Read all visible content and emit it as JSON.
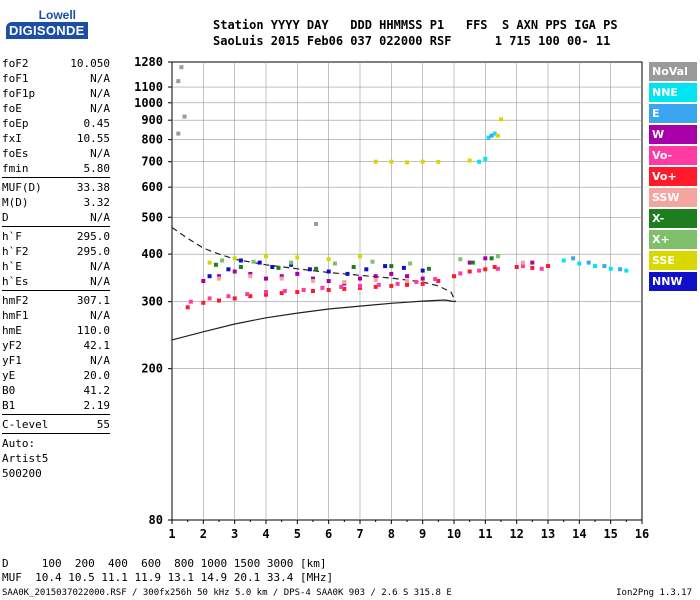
{
  "logo": {
    "line1": "Lowell",
    "line2": "DIGISONDE"
  },
  "header": {
    "line1": "Station YYYY DAY   DDD HHMMSS P1   FFS  S AXN PPS IGA PS",
    "line2": "SaoLuis 2015 Feb06 037 022000 RSF      1 715 100 00- 11"
  },
  "params": {
    "group1": [
      {
        "name": "foF2",
        "value": "10.050"
      },
      {
        "name": "foF1",
        "value": "N/A"
      },
      {
        "name": "foF1p",
        "value": "N/A"
      },
      {
        "name": "foE",
        "value": "N/A"
      },
      {
        "name": "foEp",
        "value": "0.45"
      },
      {
        "name": "fxI",
        "value": "10.55"
      },
      {
        "name": "foEs",
        "value": "N/A"
      },
      {
        "name": "fmin",
        "value": "5.80"
      }
    ],
    "group2": [
      {
        "name": "MUF(D)",
        "value": "33.38"
      },
      {
        "name": "M(D)",
        "value": "3.32"
      },
      {
        "name": "D",
        "value": "N/A"
      }
    ],
    "group3": [
      {
        "name": "h`F",
        "value": "295.0"
      },
      {
        "name": "h`F2",
        "value": "295.0"
      },
      {
        "name": "h`E",
        "value": "N/A"
      },
      {
        "name": "h`Es",
        "value": "N/A"
      }
    ],
    "group4": [
      {
        "name": "hmF2",
        "value": "307.1"
      },
      {
        "name": "hmF1",
        "value": "N/A"
      },
      {
        "name": "hmE",
        "value": "110.0"
      },
      {
        "name": "yF2",
        "value": "42.1"
      },
      {
        "name": "yF1",
        "value": "N/A"
      },
      {
        "name": "yE",
        "value": "20.0"
      },
      {
        "name": "B0",
        "value": "41.2"
      },
      {
        "name": "B1",
        "value": "2.19"
      }
    ],
    "clevel": {
      "name": "C-level",
      "value": "55"
    },
    "auto": [
      "Auto:",
      "Artist5",
      "500200"
    ]
  },
  "legend": [
    {
      "label": "NoVal",
      "color": "#9a9a9a"
    },
    {
      "label": "NNE",
      "color": "#00e5f0"
    },
    {
      "label": "E",
      "color": "#3aa6f2"
    },
    {
      "label": "W",
      "color": "#a800a8"
    },
    {
      "label": "Vo-",
      "color": "#ff3aa2"
    },
    {
      "label": "Vo+",
      "color": "#ff1a2a"
    },
    {
      "label": "SSW",
      "color": "#f4a5a0"
    },
    {
      "label": "X-",
      "color": "#1e7d1e"
    },
    {
      "label": "X+",
      "color": "#7fbf6a"
    },
    {
      "label": "SSE",
      "color": "#d8d800"
    },
    {
      "label": "NNW",
      "color": "#1010c8"
    }
  ],
  "footer": {
    "d_row": "D     100  200  400  600  800 1000 1500 3000 [km]",
    "muf_row": "MUF  10.4 10.5 11.1 11.9 13.1 14.9 20.1 33.4 [MHz]",
    "source": "SAA0K_2015037022000.RSF / 300fx256h 50 kHz 5.0 km / DPS-4 SAA0K 903 / 2.6 S 315.8 E",
    "version": "Ion2Png 1.3.17"
  },
  "chart_data": {
    "type": "scatter",
    "title": "",
    "xlabel": "",
    "ylabel": "",
    "x_scale": "linear",
    "y_scale": "log",
    "xlim": [
      1,
      16
    ],
    "ylim": [
      80,
      1280
    ],
    "x_ticks": [
      "1",
      "2",
      "3",
      "4",
      "5",
      "6",
      "7",
      "8",
      "9",
      "10",
      "11",
      "12",
      "13",
      "14",
      "15",
      "16"
    ],
    "y_ticks": [
      "80",
      "200",
      "300",
      "400",
      "500",
      "600",
      "700",
      "800",
      "900",
      "1000",
      "1100",
      "1280"
    ],
    "grid": true,
    "legend_position": "right",
    "series": [
      {
        "name": "Vo+",
        "color": "#ff1a2a",
        "points": [
          [
            1.5,
            290
          ],
          [
            2.0,
            298
          ],
          [
            2.5,
            302
          ],
          [
            3.0,
            306
          ],
          [
            3.5,
            310
          ],
          [
            4.0,
            313
          ],
          [
            4.5,
            316
          ],
          [
            5.0,
            318
          ],
          [
            5.5,
            320
          ],
          [
            6.0,
            322
          ],
          [
            6.5,
            324
          ],
          [
            7.0,
            326
          ],
          [
            7.5,
            328
          ],
          [
            8.0,
            330
          ],
          [
            8.5,
            332
          ],
          [
            9.0,
            334
          ],
          [
            9.5,
            340
          ],
          [
            10.0,
            350
          ],
          [
            10.5,
            360
          ],
          [
            11.0,
            365
          ],
          [
            11.3,
            370
          ],
          [
            12.0,
            370
          ],
          [
            12.5,
            368
          ],
          [
            13.0,
            372
          ]
        ]
      },
      {
        "name": "Vo-",
        "color": "#ff3aa2",
        "points": [
          [
            1.6,
            300
          ],
          [
            2.2,
            306
          ],
          [
            2.8,
            310
          ],
          [
            3.4,
            314
          ],
          [
            4.0,
            318
          ],
          [
            4.6,
            320
          ],
          [
            5.2,
            322
          ],
          [
            5.8,
            326
          ],
          [
            6.4,
            328
          ],
          [
            7.0,
            330
          ],
          [
            7.6,
            332
          ],
          [
            8.2,
            334
          ],
          [
            8.8,
            338
          ],
          [
            9.4,
            344
          ],
          [
            10.2,
            356
          ],
          [
            10.8,
            362
          ],
          [
            11.4,
            366
          ],
          [
            12.2,
            372
          ],
          [
            12.8,
            366
          ]
        ]
      },
      {
        "name": "W",
        "color": "#a800a8",
        "points": [
          [
            2.0,
            340
          ],
          [
            2.5,
            350
          ],
          [
            3.0,
            360
          ],
          [
            3.5,
            355
          ],
          [
            4.0,
            345
          ],
          [
            4.5,
            350
          ],
          [
            5.0,
            355
          ],
          [
            5.5,
            345
          ],
          [
            6.0,
            340
          ],
          [
            6.5,
            335
          ],
          [
            7.0,
            345
          ],
          [
            7.5,
            350
          ],
          [
            8.0,
            355
          ],
          [
            8.5,
            350
          ],
          [
            9.0,
            345
          ],
          [
            10.5,
            380
          ],
          [
            11.0,
            390
          ],
          [
            12.5,
            380
          ]
        ]
      },
      {
        "name": "NNW",
        "color": "#1010c8",
        "points": [
          [
            2.2,
            350
          ],
          [
            2.8,
            365
          ],
          [
            3.2,
            385
          ],
          [
            3.8,
            380
          ],
          [
            4.2,
            370
          ],
          [
            4.8,
            375
          ],
          [
            5.4,
            365
          ],
          [
            6.0,
            360
          ],
          [
            6.6,
            355
          ],
          [
            7.2,
            365
          ],
          [
            7.8,
            372
          ],
          [
            8.4,
            368
          ],
          [
            9.0,
            362
          ]
        ]
      },
      {
        "name": "NNE",
        "color": "#00e5f0",
        "points": [
          [
            13.5,
            385
          ],
          [
            14.0,
            378
          ],
          [
            14.5,
            372
          ],
          [
            15.0,
            366
          ],
          [
            15.5,
            362
          ],
          [
            10.8,
            700
          ],
          [
            11.0,
            712
          ],
          [
            11.1,
            810
          ],
          [
            11.3,
            830
          ]
        ]
      },
      {
        "name": "E",
        "color": "#3aa6f2",
        "points": [
          [
            13.8,
            390
          ],
          [
            14.3,
            380
          ],
          [
            14.8,
            372
          ],
          [
            15.3,
            365
          ],
          [
            11.2,
            820
          ]
        ]
      },
      {
        "name": "SSE",
        "color": "#d8d800",
        "points": [
          [
            2.2,
            380
          ],
          [
            3.0,
            390
          ],
          [
            4.0,
            395
          ],
          [
            5.0,
            392
          ],
          [
            6.0,
            388
          ],
          [
            7.0,
            395
          ],
          [
            7.5,
            700
          ],
          [
            8.0,
            700
          ],
          [
            8.5,
            697
          ],
          [
            9.0,
            700
          ],
          [
            9.5,
            699
          ],
          [
            10.5,
            705
          ],
          [
            11.4,
            820
          ],
          [
            11.5,
            905
          ]
        ]
      },
      {
        "name": "SSW",
        "color": "#f4a5a0",
        "points": [
          [
            2.5,
            345
          ],
          [
            3.5,
            350
          ],
          [
            4.5,
            345
          ],
          [
            5.5,
            340
          ],
          [
            6.5,
            338
          ],
          [
            7.5,
            342
          ],
          [
            8.5,
            340
          ],
          [
            12.2,
            380
          ]
        ]
      },
      {
        "name": "X-",
        "color": "#1e7d1e",
        "points": [
          [
            2.4,
            375
          ],
          [
            3.2,
            370
          ],
          [
            4.4,
            368
          ],
          [
            5.6,
            366
          ],
          [
            6.8,
            370
          ],
          [
            8.0,
            372
          ],
          [
            9.2,
            366
          ],
          [
            10.6,
            380
          ],
          [
            11.2,
            390
          ]
        ]
      },
      {
        "name": "X+",
        "color": "#7fbf6a",
        "points": [
          [
            2.6,
            385
          ],
          [
            3.6,
            382
          ],
          [
            4.8,
            380
          ],
          [
            6.2,
            378
          ],
          [
            7.4,
            382
          ],
          [
            8.6,
            378
          ],
          [
            10.2,
            388
          ],
          [
            11.4,
            395
          ]
        ]
      },
      {
        "name": "NoVal",
        "color": "#9a9a9a",
        "points": [
          [
            1.3,
            1240
          ],
          [
            1.2,
            1140
          ],
          [
            1.4,
            920
          ],
          [
            1.2,
            830
          ],
          [
            5.6,
            480
          ]
        ]
      }
    ],
    "traces": [
      {
        "style": "solid",
        "points": [
          [
            1,
            238
          ],
          [
            2,
            250
          ],
          [
            3,
            262
          ],
          [
            4,
            272
          ],
          [
            5,
            280
          ],
          [
            6,
            287
          ],
          [
            7,
            292
          ],
          [
            8,
            297
          ],
          [
            9,
            301
          ],
          [
            9.7,
            303
          ],
          [
            10.05,
            300
          ]
        ]
      },
      {
        "style": "dashed",
        "points": [
          [
            1,
            470
          ],
          [
            1.5,
            440
          ],
          [
            2,
            415
          ],
          [
            2.5,
            400
          ],
          [
            3,
            388
          ],
          [
            4,
            375
          ],
          [
            5,
            366
          ],
          [
            6,
            358
          ],
          [
            7,
            352
          ],
          [
            8,
            346
          ],
          [
            9,
            338
          ],
          [
            9.5,
            330
          ],
          [
            9.9,
            318
          ],
          [
            10.05,
            300
          ]
        ]
      }
    ]
  }
}
